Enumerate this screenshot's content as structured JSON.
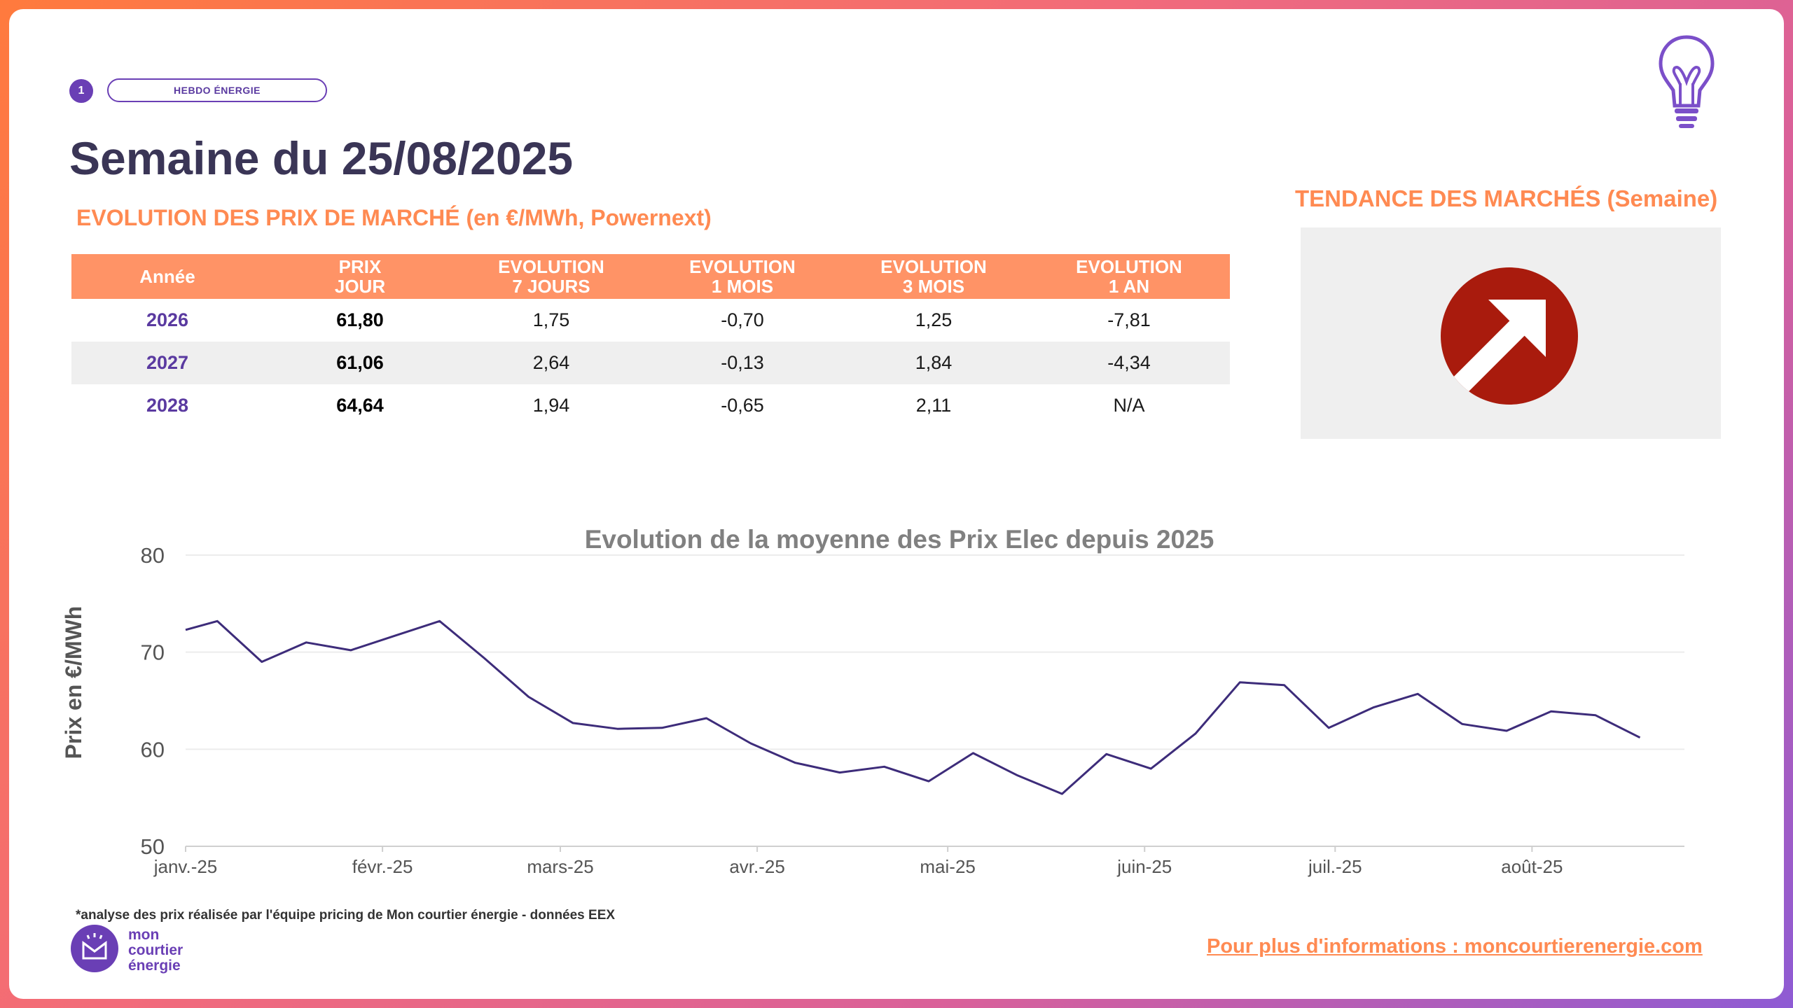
{
  "header": {
    "badge_number": "1",
    "pill_label": "HEBDO ÉNERGIE",
    "title": "Semaine du 25/08/2025",
    "subtitle": "EVOLUTION DES PRIX DE MARCHÉ (en €/MWh, Powernext)"
  },
  "table": {
    "headers": [
      [
        "Année"
      ],
      [
        "PRIX",
        "JOUR"
      ],
      [
        "EVOLUTION",
        "7 JOURS"
      ],
      [
        "EVOLUTION",
        "1 MOIS"
      ],
      [
        "EVOLUTION",
        "3 MOIS"
      ],
      [
        "EVOLUTION",
        "1 AN"
      ]
    ],
    "rows": [
      [
        "2026",
        "61,80",
        "1,75",
        "-0,70",
        "1,25",
        "-7,81"
      ],
      [
        "2027",
        "61,06",
        "2,64",
        "-0,13",
        "1,84",
        "-4,34"
      ],
      [
        "2028",
        "64,64",
        "1,94",
        "-0,65",
        "2,11",
        "N/A"
      ]
    ]
  },
  "trend": {
    "title": "TENDANCE DES MARCHÉS (Semaine)",
    "icon": "arrow-up-right-icon",
    "color": "#a91b0d"
  },
  "chart_data": {
    "type": "line",
    "title": "Evolution de la moyenne des Prix Elec depuis 2025",
    "ylabel": "Prix en €/MWh",
    "xlabel": "",
    "ylim": [
      50,
      80
    ],
    "yticks": [
      50,
      60,
      70,
      80
    ],
    "xlim": [
      "2025-01-01",
      "2025-08-25"
    ],
    "xtick_labels": [
      "janv.-25",
      "févr.-25",
      "mars-25",
      "avr.-25",
      "mai-25",
      "juin-25",
      "juil.-25",
      "août-25"
    ],
    "xtick_dates": [
      "2025-01-01",
      "2025-02-01",
      "2025-03-01",
      "2025-04-01",
      "2025-05-01",
      "2025-06-01",
      "2025-07-01",
      "2025-08-01"
    ],
    "grid": true,
    "color": "#3d2c7a",
    "series": [
      {
        "x": [
          "2025-01-01",
          "2025-01-06",
          "2025-01-13",
          "2025-01-20",
          "2025-01-27",
          "2025-02-03",
          "2025-02-10",
          "2025-02-17",
          "2025-02-24",
          "2025-03-03",
          "2025-03-10",
          "2025-03-17",
          "2025-03-24",
          "2025-03-31",
          "2025-04-07",
          "2025-04-14",
          "2025-04-21",
          "2025-04-28",
          "2025-05-05",
          "2025-05-12",
          "2025-05-19",
          "2025-05-26",
          "2025-06-02",
          "2025-06-09",
          "2025-06-16",
          "2025-06-23",
          "2025-06-30",
          "2025-07-07",
          "2025-07-14",
          "2025-07-21",
          "2025-07-28",
          "2025-08-04",
          "2025-08-11",
          "2025-08-18"
        ],
        "y": [
          72.3,
          73.2,
          69.0,
          71.0,
          70.2,
          71.7,
          73.2,
          69.4,
          65.4,
          62.7,
          62.1,
          62.2,
          63.2,
          60.6,
          58.6,
          57.6,
          58.2,
          56.7,
          59.6,
          57.3,
          55.4,
          59.5,
          58.0,
          61.6,
          66.9,
          66.6,
          62.2,
          64.3,
          65.7,
          62.6,
          61.9,
          63.9,
          63.5,
          61.2
        ]
      }
    ]
  },
  "footer": {
    "footnote": "*analyse des prix réalisée par l'équipe pricing de Mon courtier énergie -  données EEX",
    "logo_lines": [
      "mon",
      "courtier",
      "énergie"
    ],
    "info_link": "Pour plus d'informations : moncourtierenergie.com"
  }
}
